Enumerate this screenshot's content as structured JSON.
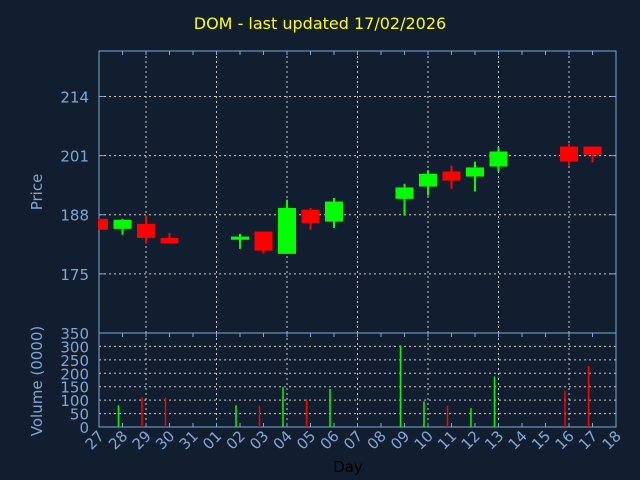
{
  "chart_data": {
    "type": "candlestick",
    "title": "DOM - last updated 17/02/2026",
    "xlabel": "Day",
    "ylabel": "Price",
    "volume_label": "Volume (0000)",
    "x_tick_labels": [
      "27",
      "28",
      "29",
      "30",
      "31",
      "01",
      "02",
      "03",
      "04",
      "05",
      "06",
      "07",
      "08",
      "09",
      "10",
      "11",
      "12",
      "13",
      "14",
      "15",
      "16",
      "17",
      "18"
    ],
    "price_ticks": [
      175,
      188,
      201,
      214
    ],
    "price_range": [
      162,
      224
    ],
    "volume_ticks": [
      0,
      50,
      100,
      150,
      200,
      250,
      300,
      350
    ],
    "volume_range": [
      0,
      350
    ],
    "grid": true,
    "colors": {
      "background": "#111e2f",
      "up": "#00ff00",
      "down": "#ff0000",
      "axis": "#7fa6d6",
      "grid": "#c8c8c8",
      "title": "#ffff00"
    },
    "candles": [
      {
        "day": "27",
        "open": 187.1,
        "high": 187.1,
        "low": 184.7,
        "close": 184.7,
        "volume": null
      },
      {
        "day": "28",
        "open": 184.9,
        "high": 187.1,
        "low": 183.6,
        "close": 186.9,
        "volume": 81
      },
      {
        "day": "29",
        "open": 186.0,
        "high": 187.8,
        "low": 181.7,
        "close": 182.9,
        "volume": 110
      },
      {
        "day": "30",
        "open": 182.9,
        "high": 184.0,
        "low": 181.7,
        "close": 181.7,
        "volume": 110
      },
      {
        "day": "02",
        "open": 182.5,
        "high": 183.8,
        "low": 180.5,
        "close": 183.2,
        "volume": 81
      },
      {
        "day": "03",
        "open": 184.3,
        "high": 184.3,
        "low": 179.5,
        "close": 180.1,
        "volume": 79
      },
      {
        "day": "04",
        "open": 179.4,
        "high": 191.3,
        "low": 179.4,
        "close": 189.5,
        "volume": 148
      },
      {
        "day": "05",
        "open": 189.1,
        "high": 189.5,
        "low": 184.7,
        "close": 186.2,
        "volume": 104
      },
      {
        "day": "06",
        "open": 186.5,
        "high": 191.7,
        "low": 185.1,
        "close": 190.9,
        "volume": 142
      },
      {
        "day": "09",
        "open": 191.5,
        "high": 194.8,
        "low": 187.8,
        "close": 194.0,
        "volume": 304
      },
      {
        "day": "10",
        "open": 194.2,
        "high": 197.8,
        "low": 192.2,
        "close": 197.0,
        "volume": 95
      },
      {
        "day": "11",
        "open": 197.5,
        "high": 198.8,
        "low": 193.7,
        "close": 195.5,
        "volume": 79
      },
      {
        "day": "12",
        "open": 196.4,
        "high": 199.7,
        "low": 193.1,
        "close": 198.4,
        "volume": 70
      },
      {
        "day": "13",
        "open": 198.6,
        "high": 202.8,
        "low": 197.5,
        "close": 201.9,
        "volume": 188
      },
      {
        "day": "16",
        "open": 203.0,
        "high": 203.6,
        "low": 198.8,
        "close": 199.7,
        "volume": 136
      },
      {
        "day": "17",
        "open": 203.0,
        "high": 203.0,
        "low": 199.5,
        "close": 201.2,
        "volume": 227
      }
    ]
  }
}
